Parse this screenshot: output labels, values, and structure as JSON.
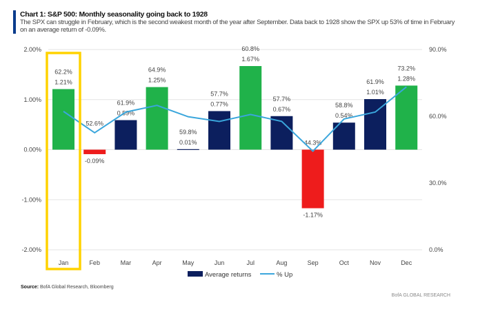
{
  "header": {
    "title": "Chart 1: S&P 500: Monthly seasonality going back to 1928",
    "subtitle": "The SPX can struggle in February, which is the second weakest month of the year after September. Data back to 1928 show the SPX up 53% of time in February on an average return of -0.09%."
  },
  "footer": {
    "source_label": "Source:",
    "source_text": "BofA Global Research, Bloomberg",
    "brand": "BofA GLOBAL RESEARCH"
  },
  "chart_data": {
    "type": "bar",
    "categories": [
      "Jan",
      "Feb",
      "Mar",
      "Apr",
      "May",
      "Jun",
      "Jul",
      "Aug",
      "Sep",
      "Oct",
      "Nov",
      "Dec"
    ],
    "series": [
      {
        "name": "Average returns",
        "type": "bar",
        "axis": "left",
        "values": [
          1.21,
          -0.09,
          0.59,
          1.25,
          0.01,
          0.77,
          1.67,
          0.67,
          -1.17,
          0.54,
          1.01,
          1.28
        ],
        "labels": [
          "1.21%",
          "-0.09%",
          "0.59%",
          "1.25%",
          "0.01%",
          "0.77%",
          "1.67%",
          "0.67%",
          "-1.17%",
          "0.54%",
          "1.01%",
          "1.28%"
        ]
      },
      {
        "name": "% Up",
        "type": "line",
        "axis": "right",
        "values": [
          62.2,
          52.6,
          61.9,
          64.9,
          59.8,
          57.7,
          60.8,
          57.7,
          44.3,
          58.8,
          61.9,
          73.2
        ],
        "labels": [
          "62.2%",
          "52.6%",
          "61.9%",
          "64.9%",
          "59.8%",
          "57.7%",
          "60.8%",
          "57.7%",
          "44.3%",
          "58.8%",
          "61.9%",
          "73.2%"
        ]
      }
    ],
    "left_axis": {
      "range": [
        -2,
        2
      ],
      "ticks": [
        "2.00%",
        "1.00%",
        "0.00%",
        "-1.00%",
        "-2.00%"
      ]
    },
    "right_axis": {
      "range": [
        0,
        90
      ],
      "ticks": [
        "90.0%",
        "60.0%",
        "30.0%",
        "0.0%"
      ]
    },
    "highlight": "Jan",
    "colors": {
      "navy": "#0c1f5e",
      "green": "#20b24a",
      "red": "#ee1c1c",
      "line": "#3aa6dc",
      "highlight": "#ffd200"
    },
    "legend": {
      "position": "bottom",
      "items": [
        "Average returns",
        "% Up"
      ]
    }
  }
}
